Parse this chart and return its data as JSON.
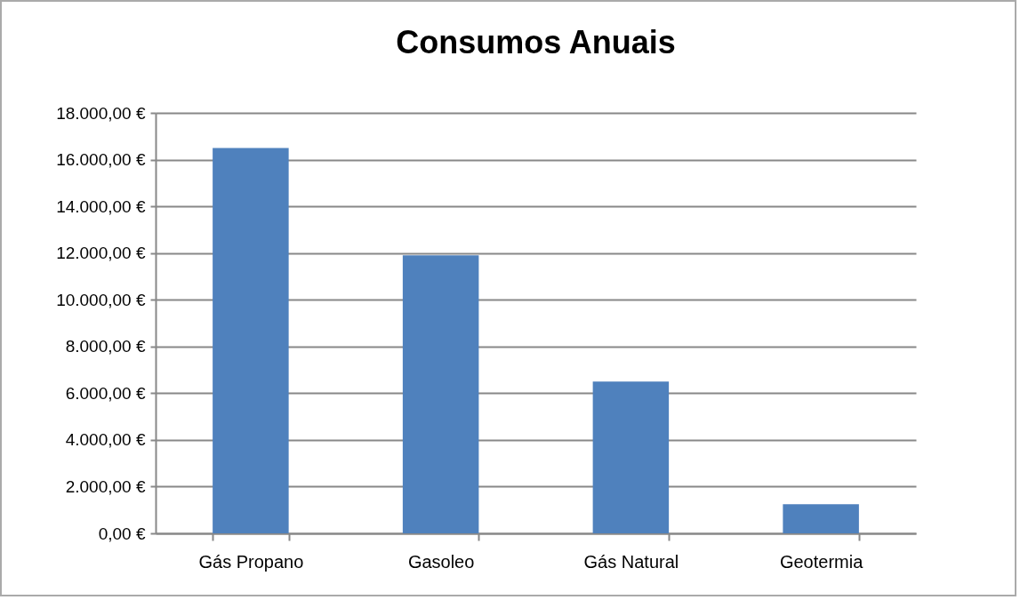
{
  "chart_data": {
    "type": "bar",
    "title": "Consumos Anuais",
    "categories": [
      "Gás Propano",
      "Gasoleo",
      "Gás Natural",
      "Geotermia"
    ],
    "values": [
      16500,
      11900,
      6500,
      1250
    ],
    "color": "#4f81bd",
    "ylim": [
      0,
      18000
    ],
    "yticks": [
      {
        "value": 0,
        "label": "0,00 €"
      },
      {
        "value": 2000,
        "label": "2.000,00 €"
      },
      {
        "value": 4000,
        "label": "4.000,00 €"
      },
      {
        "value": 6000,
        "label": "6.000,00 €"
      },
      {
        "value": 8000,
        "label": "8.000,00 €"
      },
      {
        "value": 10000,
        "label": "10.000,00 €"
      },
      {
        "value": 12000,
        "label": "12.000,00 €"
      },
      {
        "value": 14000,
        "label": "14.000,00 €"
      },
      {
        "value": 16000,
        "label": "16.000,00 €"
      },
      {
        "value": 18000,
        "label": "18.000,00 €"
      }
    ],
    "grid": "y"
  }
}
